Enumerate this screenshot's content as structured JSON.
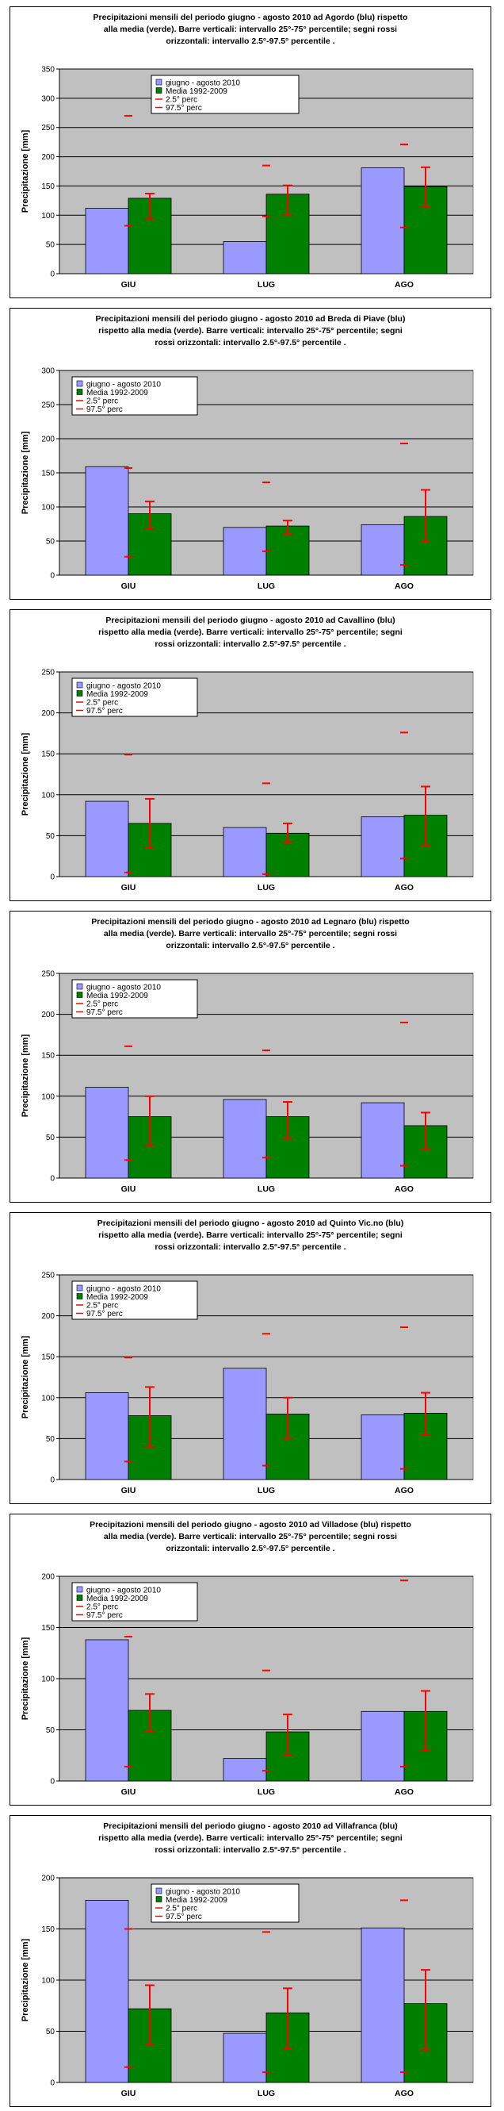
{
  "colors": {
    "observed": "#9999ff",
    "mean": "#008000",
    "errorbar": "#ff0000",
    "plot_background": "#c0c0c0",
    "grid": "#000000"
  },
  "legend_labels": [
    "giugno - agosto 2010",
    "Media 1992-2009",
    "2.5° perc",
    "97.5° perc"
  ],
  "chart_data": [
    {
      "type": "bar",
      "title_lines": [
        "Precipitazioni mensili del periodo giugno - agosto 2010 ad Agordo (blu) rispetto",
        "alla media (verde). Barre verticali: intervallo 25°-75° percentile; segni rossi",
        "orizzontali: intervallo 2.5°-97.5° percentile ."
      ],
      "ylabel": "Precipitazione [mm]",
      "categories": [
        "GIU",
        "LUG",
        "AGO"
      ],
      "ylim": [
        0,
        350
      ],
      "ystep": 50,
      "grid": true,
      "legend_position": "top-center",
      "series": [
        {
          "name": "giugno - agosto 2010",
          "values": [
            112,
            55,
            181
          ]
        },
        {
          "name": "Media 1992-2009",
          "values": [
            129,
            136,
            149
          ]
        }
      ],
      "p25": [
        94,
        100,
        115
      ],
      "p75": [
        137,
        151,
        182
      ],
      "p2_5": [
        82,
        98,
        79
      ],
      "p97_5": [
        270,
        185,
        221
      ]
    },
    {
      "type": "bar",
      "title_lines": [
        "Precipitazioni mensili del periodo giugno - agosto 2010 ad Breda di Piave (blu)",
        "rispetto alla media (verde). Barre verticali: intervallo 25°-75° percentile; segni",
        "rossi orizzontali: intervallo 2.5°-97.5° percentile ."
      ],
      "ylabel": "Precipitazione [mm]",
      "categories": [
        "GIU",
        "LUG",
        "AGO"
      ],
      "ylim": [
        0,
        300
      ],
      "ystep": 50,
      "grid": true,
      "legend_position": "top-left",
      "series": [
        {
          "name": "giugno - agosto 2010",
          "values": [
            159,
            70,
            74
          ]
        },
        {
          "name": "Media 1992-2009",
          "values": [
            90,
            72,
            86
          ]
        }
      ],
      "p25": [
        68,
        60,
        50
      ],
      "p75": [
        108,
        80,
        125
      ],
      "p2_5": [
        27,
        35,
        15
      ],
      "p97_5": [
        157,
        136,
        193
      ]
    },
    {
      "type": "bar",
      "title_lines": [
        "Precipitazioni mensili del periodo giugno - agosto 2010 ad Cavallino (blu)",
        "rispetto alla media (verde). Barre verticali: intervallo 25°-75° percentile; segni",
        "rossi orizzontali: intervallo 2.5°-97.5° percentile ."
      ],
      "ylabel": "Precipitazione [mm]",
      "categories": [
        "GIU",
        "LUG",
        "AGO"
      ],
      "ylim": [
        0,
        250
      ],
      "ystep": 50,
      "grid": true,
      "legend_position": "top-left",
      "series": [
        {
          "name": "giugno - agosto 2010",
          "values": [
            92,
            60,
            73
          ]
        },
        {
          "name": "Media 1992-2009",
          "values": [
            65,
            53,
            75
          ]
        }
      ],
      "p25": [
        35,
        42,
        38
      ],
      "p75": [
        95,
        65,
        110
      ],
      "p2_5": [
        5,
        3,
        22
      ],
      "p97_5": [
        149,
        114,
        176
      ]
    },
    {
      "type": "bar",
      "title_lines": [
        "Precipitazioni mensili del periodo giugno - agosto 2010 ad Legnaro (blu) rispetto",
        "alla media (verde). Barre verticali: intervallo 25°-75° percentile; segni rossi",
        "orizzontali: intervallo 2.5°-97.5° percentile ."
      ],
      "ylabel": "Precipitazione [mm]",
      "categories": [
        "GIU",
        "LUG",
        "AGO"
      ],
      "ylim": [
        0,
        250
      ],
      "ystep": 50,
      "grid": true,
      "legend_position": "top-left",
      "series": [
        {
          "name": "giugno - agosto 2010",
          "values": [
            111,
            96,
            92
          ]
        },
        {
          "name": "Media 1992-2009",
          "values": [
            75,
            75,
            64
          ]
        }
      ],
      "p25": [
        40,
        48,
        35
      ],
      "p75": [
        100,
        93,
        80
      ],
      "p2_5": [
        22,
        25,
        15
      ],
      "p97_5": [
        161,
        156,
        190
      ]
    },
    {
      "type": "bar",
      "title_lines": [
        "Precipitazioni mensili del periodo giugno - agosto 2010 ad Quinto Vic.no (blu)",
        "rispetto alla media (verde). Barre verticali: intervallo 25°-75° percentile; segni",
        "rossi orizzontali: intervallo 2.5°-97.5° percentile ."
      ],
      "ylabel": "Precipitazione [mm]",
      "categories": [
        "GIU",
        "LUG",
        "AGO"
      ],
      "ylim": [
        0,
        250
      ],
      "ystep": 50,
      "grid": true,
      "legend_position": "top-left",
      "series": [
        {
          "name": "giugno - agosto 2010",
          "values": [
            106,
            136,
            79
          ]
        },
        {
          "name": "Media 1992-2009",
          "values": [
            78,
            80,
            81
          ]
        }
      ],
      "p25": [
        40,
        50,
        55
      ],
      "p75": [
        113,
        100,
        106
      ],
      "p2_5": [
        22,
        17,
        13
      ],
      "p97_5": [
        149,
        178,
        186
      ]
    },
    {
      "type": "bar",
      "title_lines": [
        "Precipitazioni mensili del periodo giugno - agosto 2010 ad Villadose (blu) rispetto",
        "alla media (verde). Barre verticali: intervallo 25°-75° percentile; segni rossi",
        "orizzontali: intervallo 2.5°-97.5° percentile ."
      ],
      "ylabel": "Precipitazione [mm]",
      "categories": [
        "GIU",
        "LUG",
        "AGO"
      ],
      "ylim": [
        0,
        200
      ],
      "ystep": 50,
      "grid": true,
      "legend_position": "top-left",
      "series": [
        {
          "name": "giugno - agosto 2010",
          "values": [
            138,
            22,
            68
          ]
        },
        {
          "name": "Media 1992-2009",
          "values": [
            69,
            48,
            68
          ]
        }
      ],
      "p25": [
        48,
        25,
        30
      ],
      "p75": [
        85,
        65,
        88
      ],
      "p2_5": [
        14,
        10,
        14
      ],
      "p97_5": [
        141,
        108,
        196
      ]
    },
    {
      "type": "bar",
      "title_lines": [
        "Precipitazioni mensili del periodo giugno - agosto 2010 ad Villafranca (blu)",
        "rispetto alla media (verde). Barre verticali: intervallo 25°-75° percentile; segni",
        "rossi orizzontali: intervallo 2.5°-97.5° percentile ."
      ],
      "ylabel": "Precipitazione [mm]",
      "categories": [
        "GIU",
        "LUG",
        "AGO"
      ],
      "ylim": [
        0,
        200
      ],
      "ystep": 50,
      "grid": true,
      "legend_position": "top-center",
      "series": [
        {
          "name": "giugno - agosto 2010",
          "values": [
            178,
            48,
            151
          ]
        },
        {
          "name": "Media 1992-2009",
          "values": [
            72,
            68,
            77
          ]
        }
      ],
      "p25": [
        37,
        33,
        32
      ],
      "p75": [
        95,
        92,
        110
      ],
      "p2_5": [
        15,
        10,
        10
      ],
      "p97_5": [
        150,
        147,
        178
      ]
    }
  ]
}
